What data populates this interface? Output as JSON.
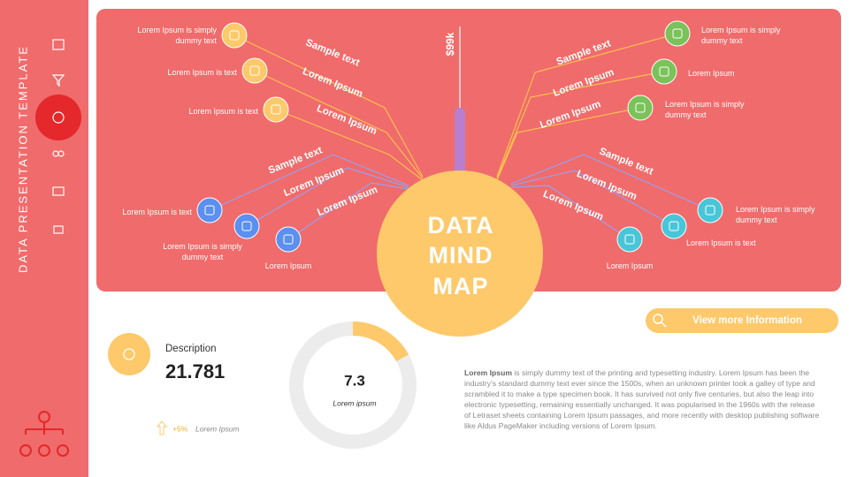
{
  "sidebar": {
    "title": "DATA PRESENTATION TEMPLATE"
  },
  "mind_map": {
    "title_lines": [
      "DATA",
      "MIND",
      "MAP"
    ],
    "stem_label": "$99k",
    "branches": [
      {
        "label": "Sample text",
        "node": "Lorem Ipsum is simply dummy text"
      },
      {
        "label": "Lorem Ipsum",
        "node": "Lorem Ipsum is text"
      },
      {
        "label": "Lorem Ipsum",
        "node": "Lorem Ipsum is text"
      },
      {
        "label": "Sample text",
        "node": "Lorem Ipsum is text"
      },
      {
        "label": "Lorem Ipsum",
        "node": "Lorem Ipsum is simply dummy text"
      },
      {
        "label": "Lorem Ipsum",
        "node": "Lorem Ipsum"
      },
      {
        "label": "Sample text",
        "node": "Lorem Ipsum is simply dummy text"
      },
      {
        "label": "Lorem Ipsum",
        "node": "Lorem Ipsum"
      },
      {
        "label": "Lorem Ipsum",
        "node": "Lorem Ipsum is simply dummy text"
      },
      {
        "label": "Sample text",
        "node": "Lorem Ipsum is simply dummy text"
      },
      {
        "label": "Lorem Ipsum",
        "node": "Lorem Ipsum is text"
      },
      {
        "label": "Lorem Ipsum",
        "node": "Lorem Ipsum"
      }
    ]
  },
  "button": {
    "label": "View  more Information"
  },
  "stat": {
    "label": "Description",
    "value": "21.781",
    "change": "+5%",
    "change_caption": "Lorem Ipsum"
  },
  "donut": {
    "value": "7.3",
    "caption": "Lorem ipsum",
    "percent": 17
  },
  "paragraph": {
    "lead": "Lorem Ipsum",
    "body": " is  simply dummy text of the printing and typesetting industry. Lorem Ipsum has been the industry's standard dummy text ever since the 1500s, when an unknown printer took a galley of type and scrambled it to make a type specimen book. It has survived  not only five centuries, but also the leap into electronic typesetting, remaining essentially  unchanged. It was popularised in the 1960s with the release  of Letraset sheets containing Lorem Ipsum passages,  and more recently with desktop publishing software like Aldus PageMaker  including versions of Lorem Ipsum."
  }
}
